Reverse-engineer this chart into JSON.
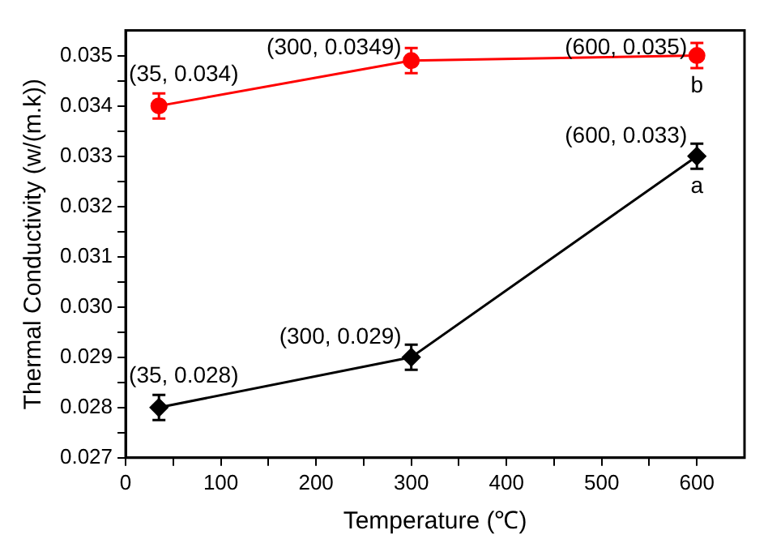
{
  "chart_data": {
    "type": "line",
    "xlabel": "Temperature (℃)",
    "ylabel": "Thermal Conductivity (w/(m.k))",
    "x": [
      35,
      300,
      600
    ],
    "series": [
      {
        "color": "#ff0000",
        "marker": "circle",
        "values": [
          0.034,
          0.0349,
          0.035
        ],
        "errors": [
          0.00025,
          0.00025,
          0.00025
        ]
      },
      {
        "color": "#000000",
        "marker": "diamond",
        "values": [
          0.028,
          0.029,
          0.033
        ],
        "errors": [
          0.00025,
          0.00025,
          0.00025
        ]
      }
    ],
    "xlim": [
      0,
      650
    ],
    "xticks": [
      0,
      {
        "value": 50,
        "label": null
      },
      100,
      {
        "value": 150,
        "label": null
      },
      200,
      {
        "value": 250,
        "label": null
      },
      300,
      {
        "value": 350,
        "label": null
      },
      400,
      {
        "value": 450,
        "label": null
      },
      500,
      {
        "value": 550,
        "label": null
      },
      600
    ],
    "ylim": [
      0.027,
      0.0355
    ],
    "yticks": [
      {
        "value": 0.027,
        "label": "0.027"
      },
      {
        "value": 0.0275,
        "label": null
      },
      {
        "value": 0.028,
        "label": "0.028"
      },
      {
        "value": 0.0285,
        "label": null
      },
      {
        "value": 0.029,
        "label": "0.029"
      },
      {
        "value": 0.0295,
        "label": null
      },
      {
        "value": 0.03,
        "label": "0.030"
      },
      {
        "value": 0.0305,
        "label": null
      },
      {
        "value": 0.031,
        "label": "0.031"
      },
      {
        "value": 0.0315,
        "label": null
      },
      {
        "value": 0.032,
        "label": "0.032"
      },
      {
        "value": 0.0325,
        "label": null
      },
      {
        "value": 0.033,
        "label": "0.033"
      },
      {
        "value": 0.0335,
        "label": null
      },
      {
        "value": 0.034,
        "label": "0.034"
      },
      {
        "value": 0.0345,
        "label": null
      },
      {
        "value": 0.035,
        "label": "0.035"
      }
    ],
    "grid": false,
    "legend": false,
    "line_style": "solid",
    "annotations": [
      {
        "text": "(35, 0.034)",
        "x": 35,
        "y": 0.034
      },
      {
        "text": "(300, 0.0349)",
        "x": 300,
        "y": 0.0349
      },
      {
        "text": "(600, 0.035)",
        "x": 600,
        "y": 0.035
      },
      {
        "text": "b",
        "x": 600,
        "y": 0.035
      },
      {
        "text": "(600, 0.033)",
        "x": 600,
        "y": 0.033
      },
      {
        "text": "a",
        "x": 600,
        "y": 0.033
      },
      {
        "text": "(35, 0.028)",
        "x": 35,
        "y": 0.028
      },
      {
        "text": "(300, 0.029)",
        "x": 300,
        "y": 0.029
      }
    ]
  }
}
